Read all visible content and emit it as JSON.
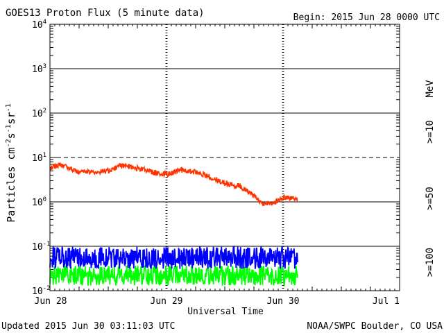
{
  "chart_data": {
    "type": "line",
    "title": "GOES13 Proton Flux (5 minute data)",
    "begin_label": "Begin: 2015 Jun 28 0000 UTC",
    "xlabel": "Universal Time",
    "ylabel": "Particles cm⁻²s⁻¹sr⁻¹",
    "ylabel_parts": [
      "Particles cm",
      "-2",
      "s",
      "-1",
      "sr",
      "-1"
    ],
    "y_scale": "log",
    "ylim": [
      0.01,
      10000
    ],
    "y_ticks": [
      {
        "value": 0.01,
        "base": "10",
        "exp": "-2"
      },
      {
        "value": 0.1,
        "base": "10",
        "exp": "-1"
      },
      {
        "value": 1,
        "base": "10",
        "exp": "0"
      },
      {
        "value": 10,
        "base": "10",
        "exp": "1"
      },
      {
        "value": 100,
        "base": "10",
        "exp": "2"
      },
      {
        "value": 1000,
        "base": "10",
        "exp": "3"
      },
      {
        "value": 10000,
        "base": "10",
        "exp": "4"
      }
    ],
    "xlim": [
      "2015-06-28T00:00",
      "2015-07-01T00:00"
    ],
    "x_ticks": [
      {
        "value": "2015-06-28T00:00",
        "label": "Jun 28"
      },
      {
        "value": "2015-06-29T00:00",
        "label": "Jun 29"
      },
      {
        "value": "2015-06-30T00:00",
        "label": "Jun 30"
      },
      {
        "value": "2015-07-01T00:00",
        "label": "Jul 1"
      }
    ],
    "grid": "horizontal",
    "threshold_line": {
      "value": 10,
      "style": "dashed"
    },
    "unit_label": "MeV",
    "series": [
      {
        "name": ">=10",
        "color": "#ff3300",
        "points": [
          [
            "2015-06-28T00:00",
            5.5
          ],
          [
            "2015-06-28T02:00",
            6.5
          ],
          [
            "2015-06-28T03:00",
            6.0
          ],
          [
            "2015-06-28T06:00",
            4.5
          ],
          [
            "2015-06-28T09:00",
            4.5
          ],
          [
            "2015-06-28T12:00",
            4.8
          ],
          [
            "2015-06-28T15:00",
            6.5
          ],
          [
            "2015-06-28T18:00",
            5.5
          ],
          [
            "2015-06-28T21:00",
            4.5
          ],
          [
            "2015-06-29T00:00",
            4.0
          ],
          [
            "2015-06-29T03:00",
            5.0
          ],
          [
            "2015-06-29T06:00",
            4.5
          ],
          [
            "2015-06-29T09:00",
            3.5
          ],
          [
            "2015-06-29T12:00",
            2.5
          ],
          [
            "2015-06-29T15:00",
            2.2
          ],
          [
            "2015-06-29T18:00",
            1.3
          ],
          [
            "2015-06-29T20:00",
            0.85
          ],
          [
            "2015-06-29T22:00",
            0.9
          ],
          [
            "2015-06-30T00:00",
            1.2
          ],
          [
            "2015-06-30T03:00",
            1.1
          ]
        ]
      },
      {
        "name": ">=50",
        "color": "#0000ff",
        "points": [
          [
            "2015-06-28T00:00",
            0.055
          ],
          [
            "2015-06-28T12:00",
            0.055
          ],
          [
            "2015-06-29T00:00",
            0.055
          ],
          [
            "2015-06-29T12:00",
            0.055
          ],
          [
            "2015-06-30T00:00",
            0.055
          ],
          [
            "2015-06-30T03:00",
            0.055
          ]
        ]
      },
      {
        "name": ">=100",
        "color": "#00ff00",
        "points": [
          [
            "2015-06-28T00:00",
            0.022
          ],
          [
            "2015-06-28T12:00",
            0.022
          ],
          [
            "2015-06-29T00:00",
            0.022
          ],
          [
            "2015-06-29T12:00",
            0.022
          ],
          [
            "2015-06-30T00:00",
            0.022
          ],
          [
            "2015-06-30T03:00",
            0.022
          ]
        ]
      }
    ]
  },
  "footer": {
    "updated": "Updated 2015 Jun 30 03:11:03 UTC",
    "source": "NOAA/SWPC Boulder, CO USA"
  }
}
